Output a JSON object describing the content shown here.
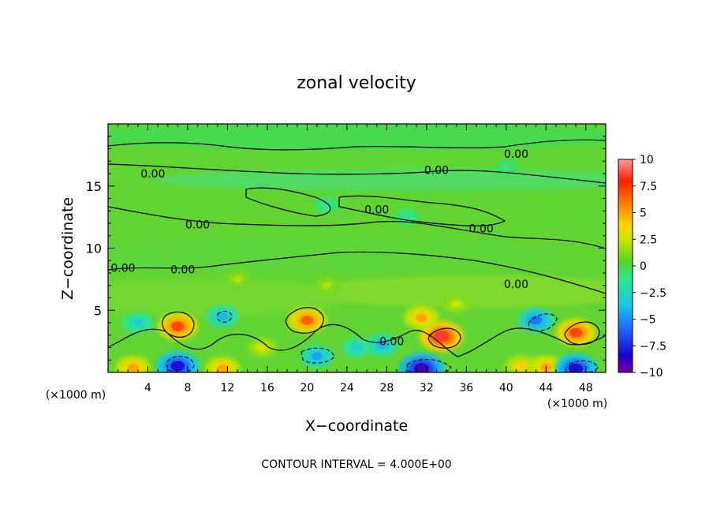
{
  "chart_data": {
    "type": "heatmap",
    "title": "zonal velocity",
    "xlabel": "X−coordinate",
    "ylabel": "Z−coordinate",
    "x_unit": "(×1000 m)",
    "xlim": [
      0,
      50
    ],
    "ylim": [
      0,
      20
    ],
    "x_ticks": [
      4,
      8,
      12,
      16,
      20,
      24,
      28,
      32,
      36,
      40,
      44,
      48
    ],
    "y_ticks": [
      5,
      10,
      15
    ],
    "colorbar": {
      "range": [
        -10,
        10
      ],
      "tick_values": [
        10,
        7.5,
        5,
        2.5,
        0,
        -2.5,
        -5,
        -7.5,
        -10
      ],
      "tick_labels": [
        "10",
        "7.5",
        "5",
        "2.5",
        "0",
        "−2.5",
        "−5",
        "−7.5",
        "−10"
      ]
    },
    "contour_labels": [
      {
        "text": "0.00",
        "x": 4.5,
        "z": 16.0
      },
      {
        "text": "0.00",
        "x": 9.0,
        "z": 11.9
      },
      {
        "text": "0.00",
        "x": 1.5,
        "z": 8.4
      },
      {
        "text": "0.00",
        "x": 7.5,
        "z": 8.3
      },
      {
        "text": "0.00",
        "x": 33.0,
        "z": 16.3
      },
      {
        "text": "0.00",
        "x": 41.0,
        "z": 17.6
      },
      {
        "text": "0.00",
        "x": 27.0,
        "z": 13.1
      },
      {
        "text": "0.00",
        "x": 37.5,
        "z": 11.6
      },
      {
        "text": "0.00",
        "x": 41.0,
        "z": 7.1
      },
      {
        "text": "0.00",
        "x": 28.5,
        "z": 2.5
      }
    ],
    "features": [
      {
        "x": 7.0,
        "z": 3.7,
        "value": 7.0
      },
      {
        "x": 20.0,
        "z": 4.2,
        "value": 6.5
      },
      {
        "x": 33.5,
        "z": 2.9,
        "value": 8.5
      },
      {
        "x": 47.0,
        "z": 3.2,
        "value": 7.0
      },
      {
        "x": 31.5,
        "z": 4.4,
        "value": 5.0
      },
      {
        "x": 2.5,
        "z": 0.4,
        "value": 5.0
      },
      {
        "x": 11.5,
        "z": 0.3,
        "value": 5.0
      },
      {
        "x": 41.5,
        "z": 0.5,
        "value": 4.0
      },
      {
        "x": 44.0,
        "z": 0.4,
        "value": 5.0
      },
      {
        "x": 7.0,
        "z": 0.5,
        "value": -8.0
      },
      {
        "x": 31.5,
        "z": 0.3,
        "value": -9.0
      },
      {
        "x": 47.0,
        "z": 0.3,
        "value": -8.0
      },
      {
        "x": 43.0,
        "z": 4.2,
        "value": -5.5
      },
      {
        "x": 11.5,
        "z": 4.5,
        "value": -4.0
      },
      {
        "x": 21.0,
        "z": 1.3,
        "value": -4.5
      },
      {
        "x": 27.5,
        "z": 2.2,
        "value": -4.0
      },
      {
        "x": 3.0,
        "z": 4.0,
        "value": -3.0
      },
      {
        "x": 25.0,
        "z": 2.0,
        "value": -3.0
      },
      {
        "x": 30.0,
        "z": 12.5,
        "value": -1.5
      },
      {
        "x": 40.0,
        "z": 16.5,
        "value": -1.0
      },
      {
        "x": 22.0,
        "z": 13.5,
        "value": -1.5
      },
      {
        "x": 13.0,
        "z": 7.5,
        "value": 2.0
      },
      {
        "x": 22.0,
        "z": 7.0,
        "value": 2.0
      },
      {
        "x": 35.0,
        "z": 5.5,
        "value": 2.5
      },
      {
        "x": 15.5,
        "z": 2.0,
        "value": 3.0
      }
    ],
    "footer": "CONTOUR INTERVAL = 4.000E+00"
  }
}
